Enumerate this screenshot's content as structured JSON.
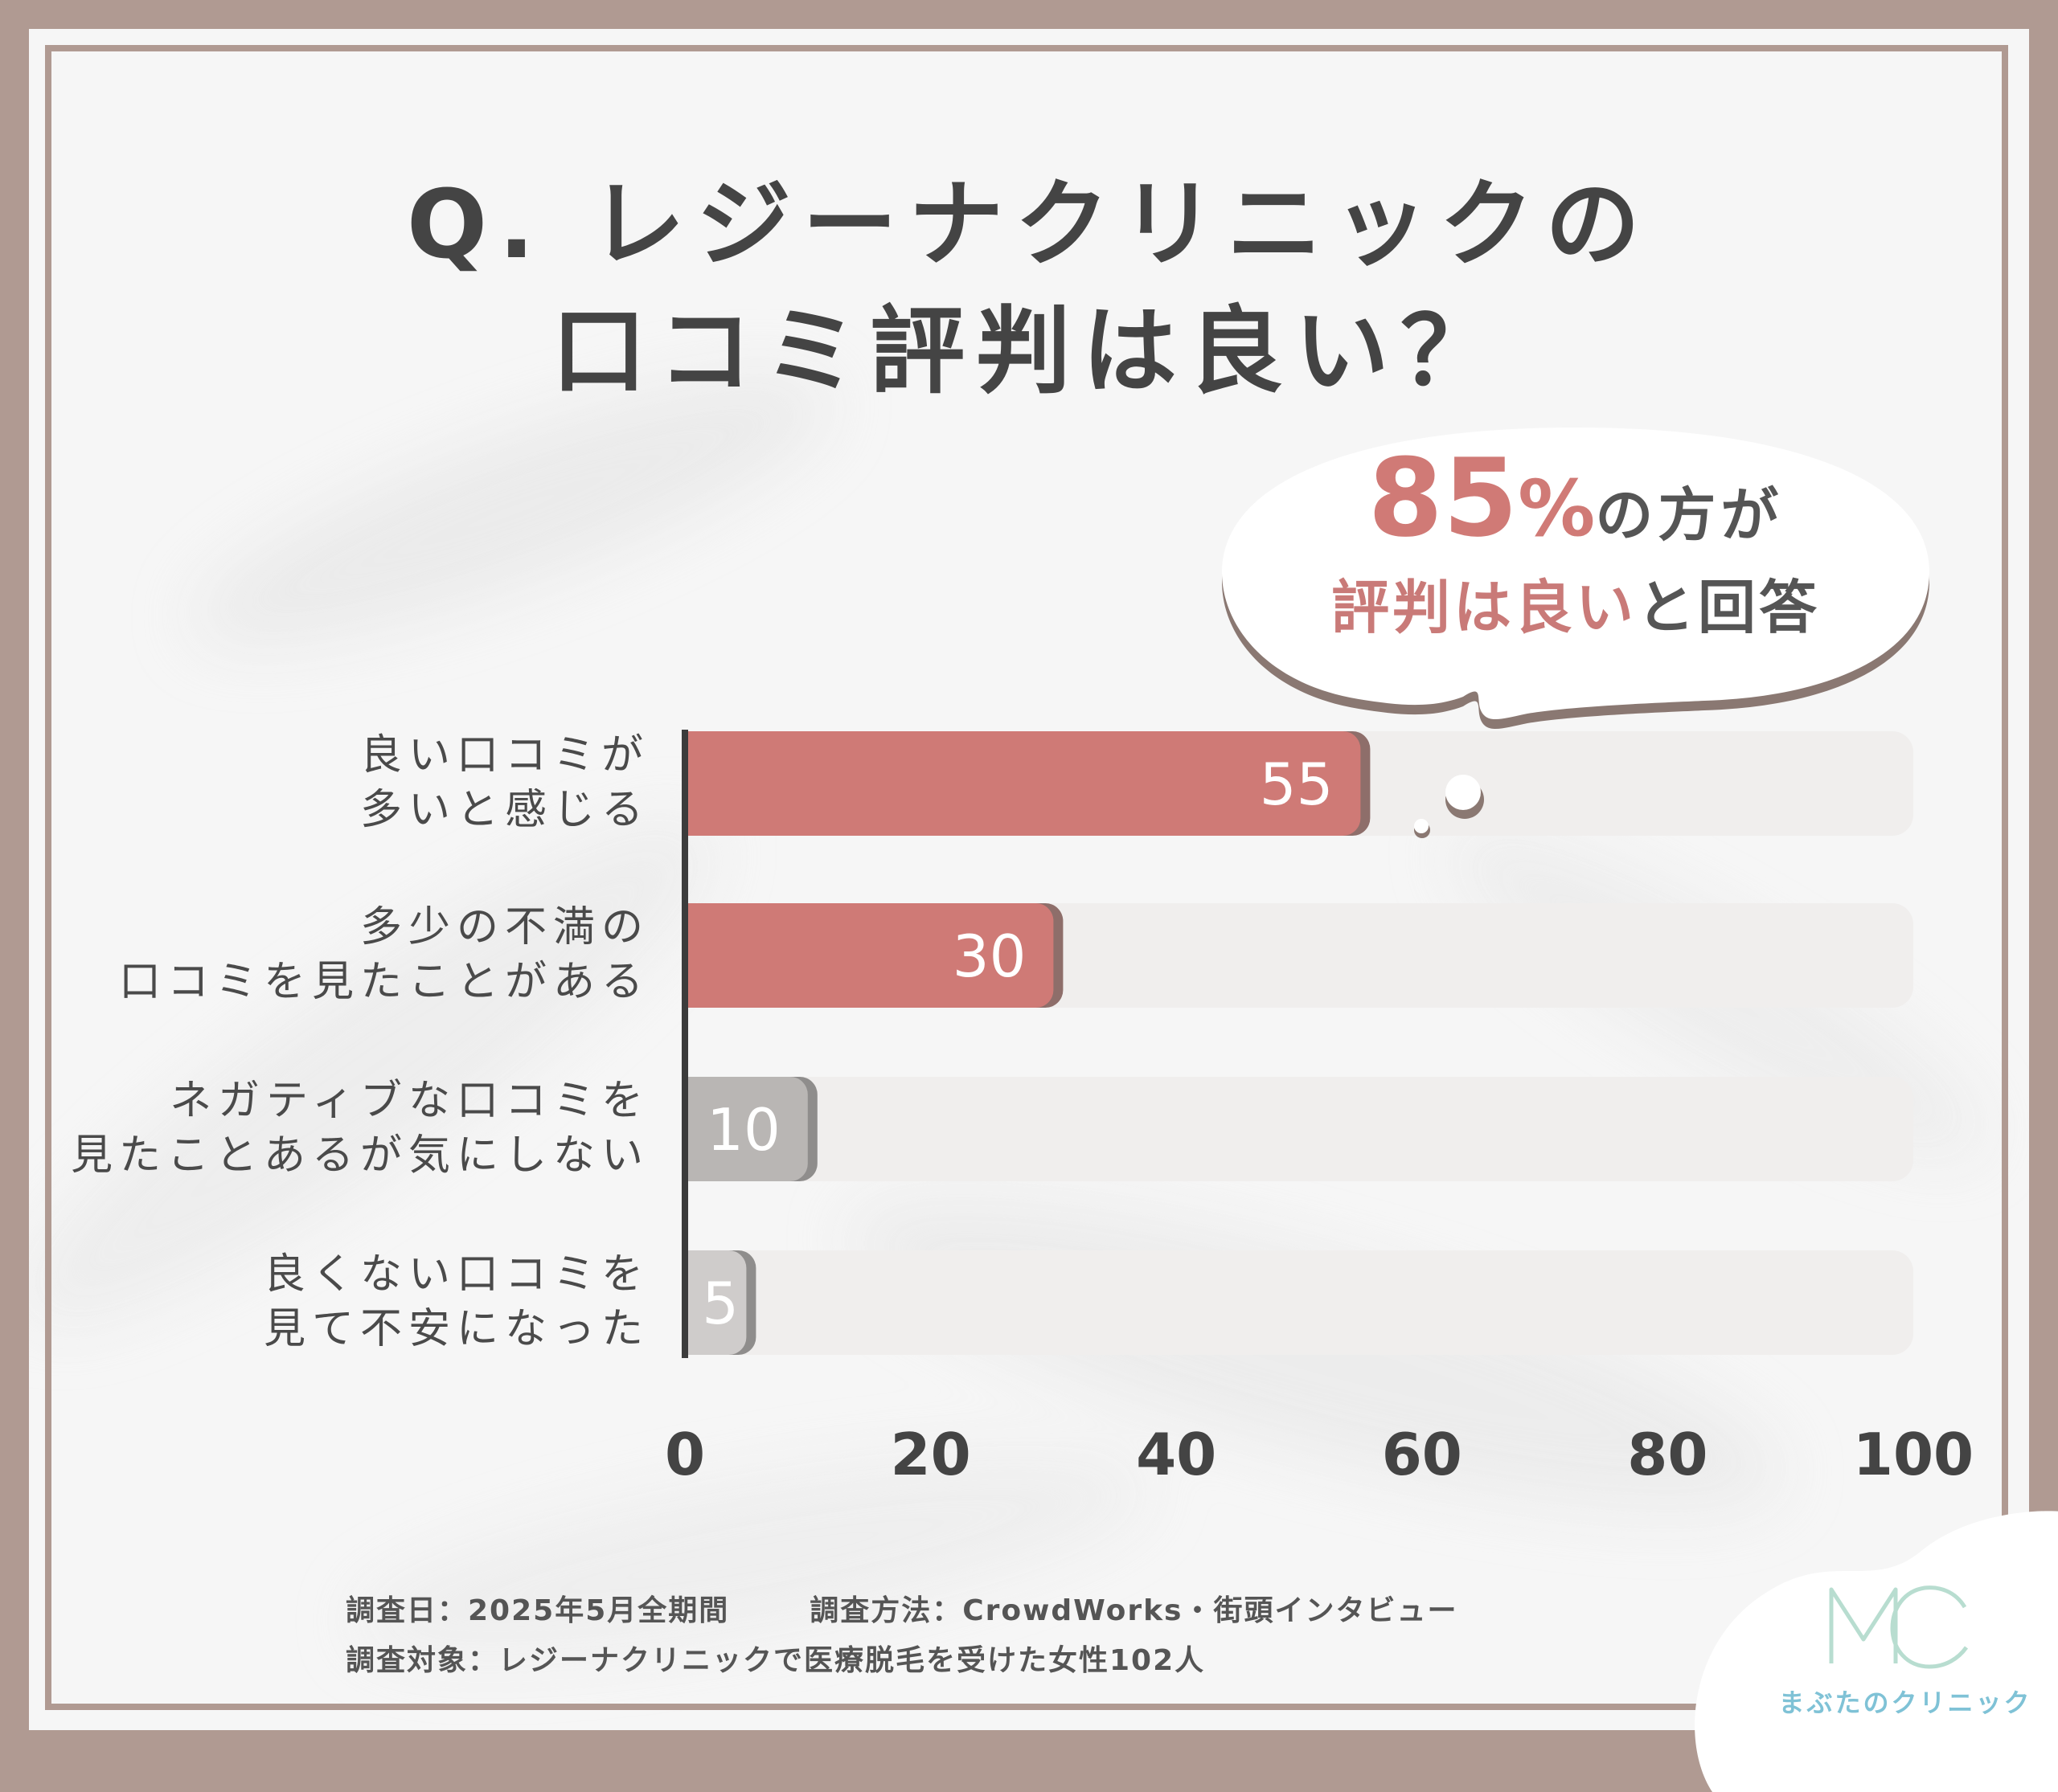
{
  "title": {
    "line1": "Q. レジーナクリニックの",
    "line2": "口コミ評判は良い？"
  },
  "callout": {
    "big_number": "85",
    "percent_sign": "%",
    "line1_rest": "の方が",
    "line2_highlight": "評判は良い",
    "line2_rest": "と回答"
  },
  "chart_data": {
    "type": "bar",
    "orientation": "horizontal",
    "categories": [
      "良い口コミが\n多いと感じる",
      "多少の不満の\n口コミを見たことがある",
      "ネガティブな口コミを\n見たことあるが気にしない",
      "良くない口コミを\n見て不安になった"
    ],
    "values": [
      55,
      30,
      10,
      5
    ],
    "bar_colors": [
      "#cf7a76",
      "#cf7a76",
      "#b9b6b4",
      "#cfcccb"
    ],
    "xlim": [
      0,
      100
    ],
    "xticks": [
      0,
      20,
      40,
      60,
      80,
      100
    ],
    "grid": false,
    "legend": "none"
  },
  "footer": {
    "date": "調査日：2025年5月全期間",
    "method": "調査方法：CrowdWorks・街頭インタビュー",
    "target": "調査対象：レジーナクリニックで医療脱毛を受けた女性102人"
  },
  "logo": {
    "mark": "MC",
    "name": "まぶたのクリニック"
  },
  "colors": {
    "frame": "#b09a92",
    "accent": "#cf7a76",
    "track": "#f0eeed",
    "logo": "#7fc2d6"
  }
}
